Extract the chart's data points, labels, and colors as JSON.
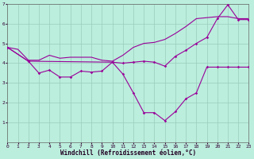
{
  "xlabel": "Windchill (Refroidissement éolien,°C)",
  "bg_color": "#bbeedd",
  "line_color": "#990099",
  "grid_color": "#99ccbb",
  "xlim": [
    0,
    23
  ],
  "ylim": [
    0,
    7
  ],
  "xticks": [
    0,
    1,
    2,
    3,
    4,
    5,
    6,
    7,
    8,
    9,
    10,
    11,
    12,
    13,
    14,
    15,
    16,
    17,
    18,
    19,
    20,
    21,
    22,
    23
  ],
  "yticks": [
    1,
    2,
    3,
    4,
    5,
    6,
    7
  ],
  "line1_x": [
    0,
    1,
    2,
    3,
    4,
    5,
    6,
    7,
    8,
    9,
    10,
    11,
    12,
    13,
    14,
    15,
    16,
    17,
    18,
    19,
    20,
    21,
    22,
    23
  ],
  "line1_y": [
    4.8,
    4.7,
    4.15,
    4.15,
    4.4,
    4.25,
    4.3,
    4.3,
    4.3,
    4.15,
    4.1,
    4.4,
    4.8,
    5.0,
    5.05,
    5.2,
    5.5,
    5.85,
    6.25,
    6.3,
    6.35,
    6.35,
    6.25,
    6.25
  ],
  "line2_x": [
    0,
    2,
    3,
    4,
    5,
    6,
    7,
    8,
    9,
    10,
    11,
    12,
    13,
    14,
    15,
    16,
    17,
    18,
    19,
    20,
    21,
    22,
    23
  ],
  "line2_y": [
    4.8,
    4.1,
    3.5,
    3.65,
    3.3,
    3.3,
    3.6,
    3.55,
    3.6,
    4.05,
    3.45,
    2.5,
    1.5,
    1.5,
    1.1,
    1.55,
    2.2,
    2.5,
    3.8,
    3.8,
    3.8,
    3.8,
    3.8
  ],
  "line3_x": [
    0,
    2,
    10,
    11,
    12,
    13,
    14,
    15,
    16,
    17,
    18,
    19,
    20,
    21,
    22,
    23
  ],
  "line3_y": [
    4.8,
    4.1,
    4.05,
    4.0,
    4.05,
    4.1,
    4.05,
    3.85,
    4.35,
    4.65,
    5.0,
    5.3,
    6.25,
    6.95,
    6.2,
    6.2
  ]
}
